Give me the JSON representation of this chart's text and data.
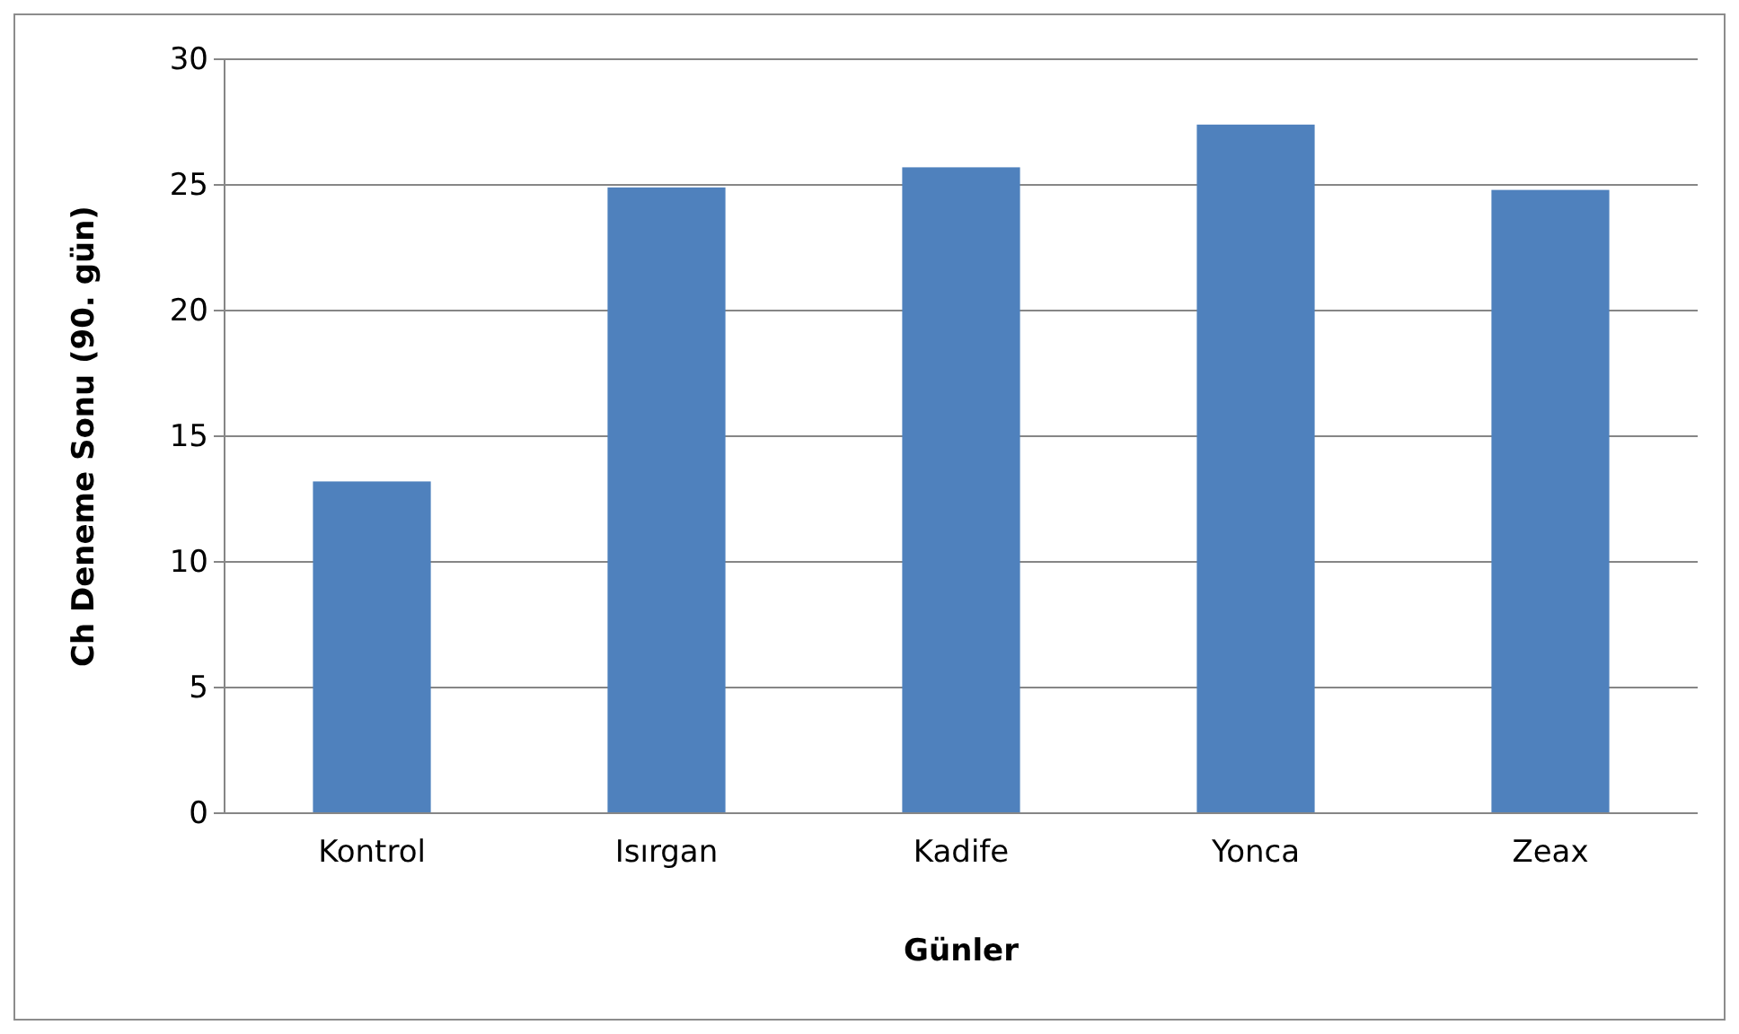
{
  "chart_data": {
    "type": "bar",
    "xlabel": "Günler",
    "ylabel": "Ch Deneme Sonu (90. gün)",
    "categories": [
      "Kontrol",
      "Isırgan",
      "Kadife",
      "Yonca",
      "Zeax"
    ],
    "values": [
      13.2,
      24.9,
      25.7,
      27.4,
      24.8
    ],
    "color": "#4f81bd",
    "ylim": [
      0,
      30
    ],
    "yticks": [
      0,
      5,
      10,
      15,
      20,
      25,
      30
    ],
    "grid": "y"
  }
}
